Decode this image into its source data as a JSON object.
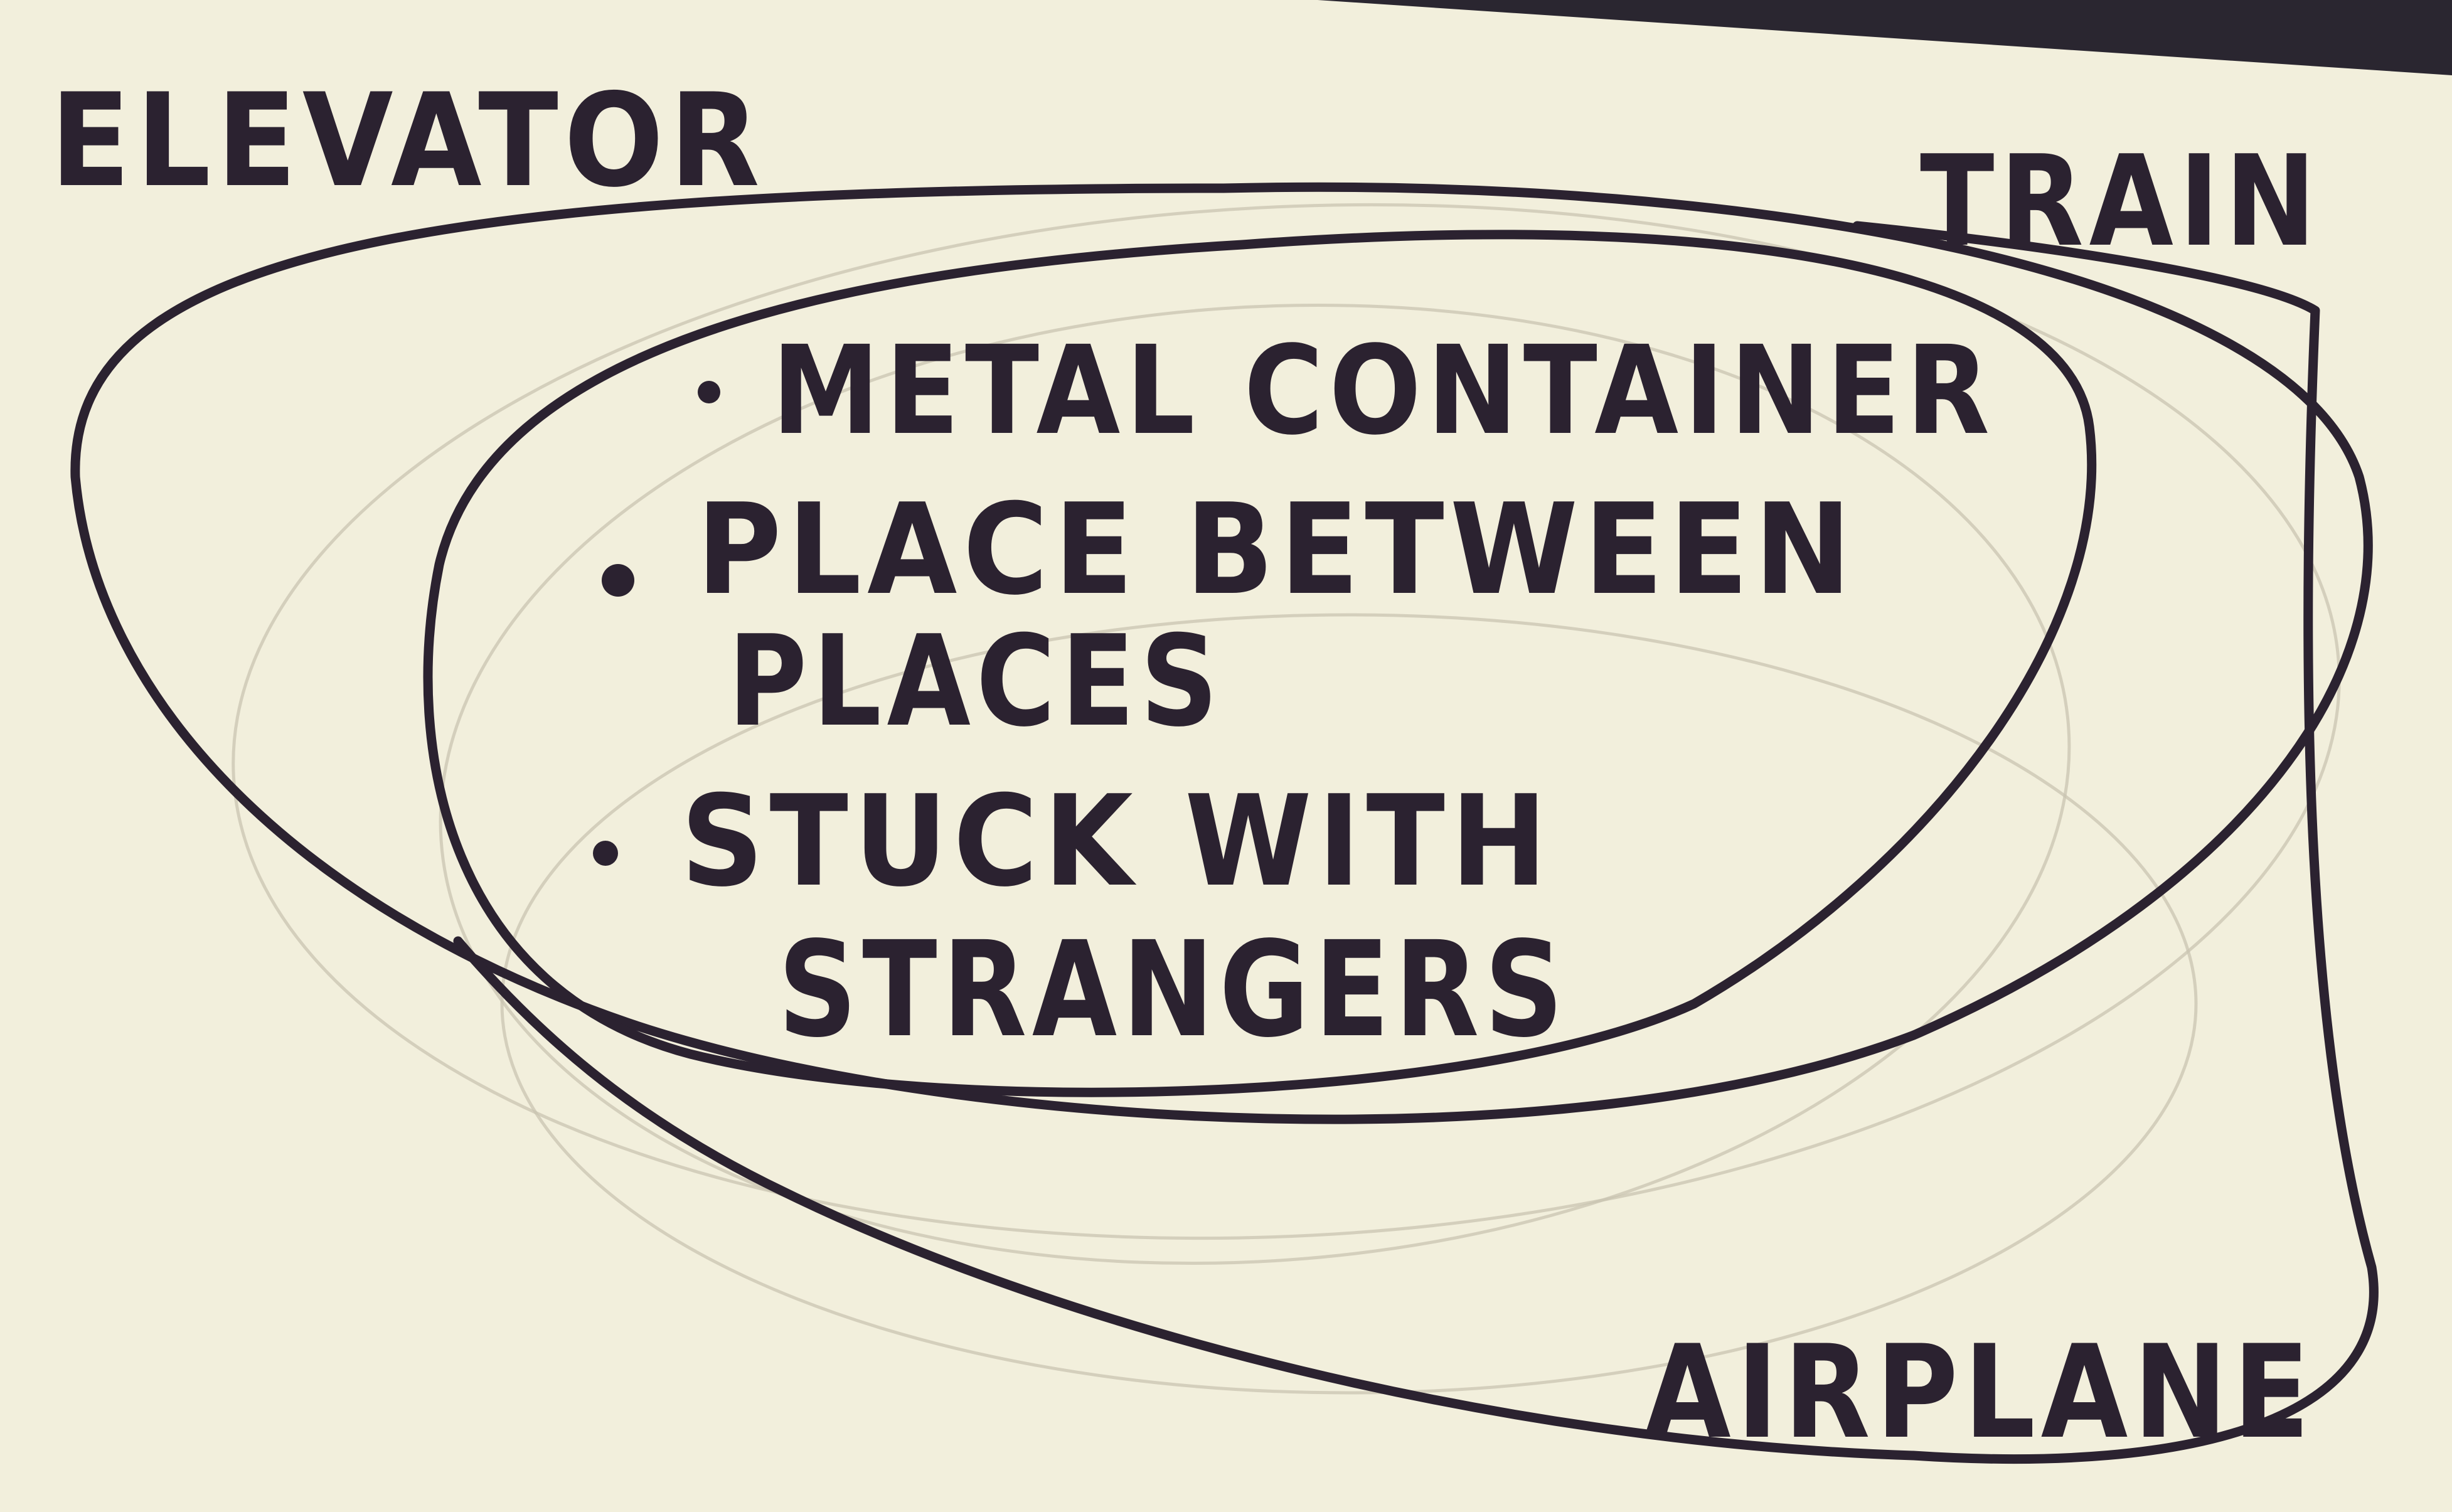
{
  "diagram": {
    "type": "euler-diagram",
    "sets": [
      {
        "id": "elevator",
        "label": "ELEVATOR"
      },
      {
        "id": "train",
        "label": "TRAIN"
      },
      {
        "id": "airplane",
        "label": "AIRPLANE"
      }
    ],
    "shared_traits": [
      {
        "lines": [
          "METAL CONTAINER"
        ]
      },
      {
        "lines": [
          "PLACE BETWEEN",
          "PLACES"
        ]
      },
      {
        "lines": [
          "STUCK WITH",
          "STRANGERS"
        ]
      }
    ]
  },
  "colors": {
    "ink": "#2b2230",
    "paper": "#f2efdc",
    "background": "#2a2630",
    "pencil_trace": "#c9c4b1"
  }
}
